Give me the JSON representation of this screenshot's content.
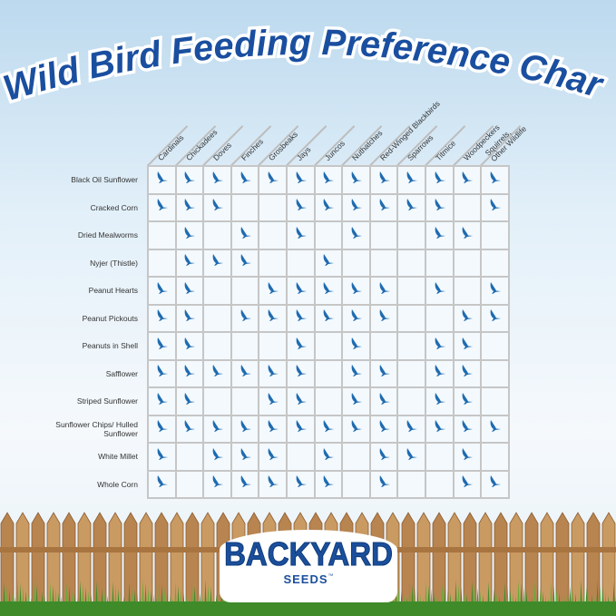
{
  "title": "Wild Bird Feeding Preference Chart",
  "brand": {
    "name": "BACKYARD",
    "sub": "SEEDS",
    "tm": "™"
  },
  "colors": {
    "title": "#1a4fa0",
    "bird_icon": "#1f6bb0",
    "grid": "#c6c6c6"
  },
  "chart_data": {
    "type": "table",
    "title": "Wild Bird Feeding Preference Chart",
    "icon": "bird-icon",
    "columns": [
      "Cardinals",
      "Chickadees",
      "Doves",
      "Finches",
      "Grosbeaks",
      "Jays",
      "Juncos",
      "Nuthatches",
      "Red-Winged Blackbirds",
      "Sparrows",
      "Titmice",
      "Woodpeckers",
      "Squirrels, Other Wildlife"
    ],
    "rows": [
      {
        "label": "Black Oil Sunflower",
        "values": [
          1,
          1,
          1,
          1,
          1,
          1,
          1,
          1,
          1,
          1,
          1,
          1,
          1
        ]
      },
      {
        "label": "Cracked Corn",
        "values": [
          1,
          1,
          1,
          0,
          0,
          1,
          1,
          1,
          1,
          1,
          1,
          0,
          1
        ]
      },
      {
        "label": "Dried Mealworms",
        "values": [
          0,
          1,
          0,
          1,
          0,
          1,
          0,
          1,
          0,
          0,
          1,
          1,
          0
        ]
      },
      {
        "label": "Nyjer (Thistle)",
        "values": [
          0,
          1,
          1,
          1,
          0,
          0,
          1,
          0,
          0,
          0,
          0,
          0,
          0
        ]
      },
      {
        "label": "Peanut Hearts",
        "values": [
          1,
          1,
          0,
          0,
          1,
          1,
          1,
          1,
          1,
          0,
          1,
          0,
          1
        ]
      },
      {
        "label": "Peanut Pickouts",
        "values": [
          1,
          1,
          0,
          1,
          1,
          1,
          1,
          1,
          1,
          0,
          0,
          1,
          1
        ]
      },
      {
        "label": "Peanuts in Shell",
        "values": [
          1,
          1,
          0,
          0,
          0,
          1,
          0,
          1,
          0,
          0,
          1,
          1,
          0
        ]
      },
      {
        "label": "Safflower",
        "values": [
          1,
          1,
          1,
          1,
          1,
          1,
          0,
          1,
          1,
          0,
          1,
          1,
          0
        ]
      },
      {
        "label": "Striped Sunflower",
        "values": [
          1,
          1,
          0,
          0,
          1,
          1,
          0,
          1,
          1,
          0,
          1,
          1,
          0
        ]
      },
      {
        "label": "Sunflower Chips/ Hulled Sunflower",
        "values": [
          1,
          1,
          1,
          1,
          1,
          1,
          1,
          1,
          1,
          1,
          1,
          1,
          1
        ]
      },
      {
        "label": "White Millet",
        "values": [
          1,
          0,
          1,
          1,
          1,
          0,
          1,
          0,
          1,
          1,
          0,
          1,
          0
        ]
      },
      {
        "label": "Whole Corn",
        "values": [
          1,
          0,
          1,
          1,
          1,
          1,
          1,
          0,
          1,
          0,
          0,
          1,
          1
        ]
      }
    ]
  }
}
